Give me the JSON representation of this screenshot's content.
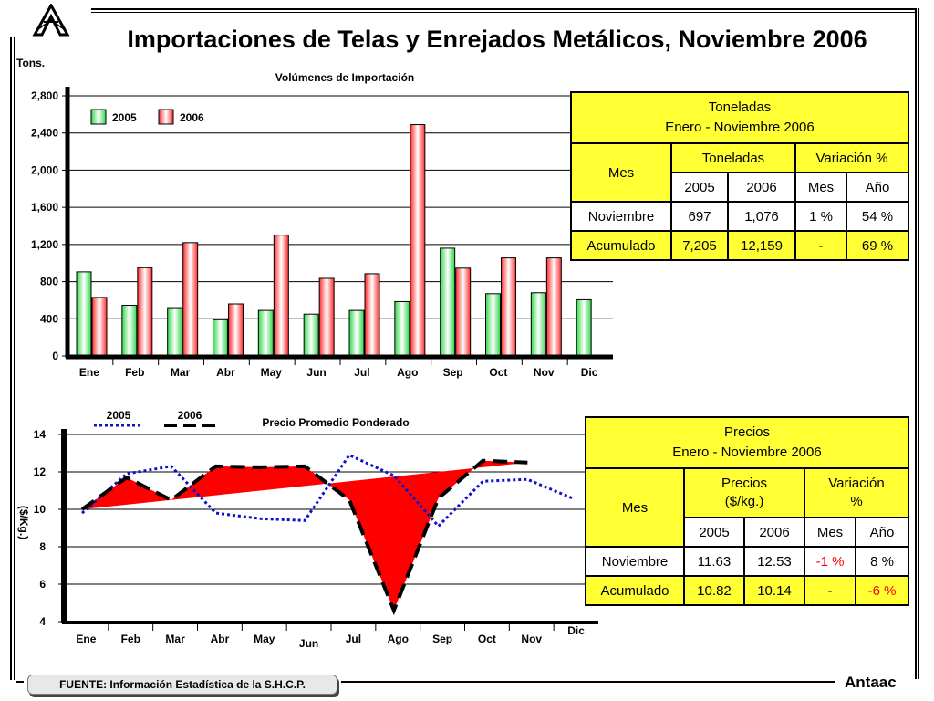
{
  "page": {
    "title": "Importaciones de Telas y Enrejados Metálicos, Noviembre 2006",
    "source": "FUENTE: Información Estadística de la S.H.C.P.",
    "brand": "Antaac"
  },
  "colors": {
    "bar_2005": "#2fd84a",
    "bar_2006": "#ff2a2a",
    "table_fill": "#ffff33",
    "line_2005": "#1010cc",
    "line_2006": "#000000",
    "area_fill": "#ff0000"
  },
  "chart_data": [
    {
      "type": "bar",
      "title": "Volúmenes de Importación",
      "ylabel": "Tons.",
      "categories": [
        "Ene",
        "Feb",
        "Mar",
        "Abr",
        "May",
        "Jun",
        "Jul",
        "Ago",
        "Sep",
        "Oct",
        "Nov",
        "Dic"
      ],
      "series": [
        {
          "name": "2005",
          "values": [
            905,
            545,
            520,
            390,
            490,
            450,
            490,
            585,
            1160,
            670,
            680,
            605
          ]
        },
        {
          "name": "2006",
          "values": [
            630,
            950,
            1220,
            560,
            1300,
            835,
            885,
            2490,
            945,
            1055,
            1055,
            null
          ]
        }
      ],
      "ylim": [
        0,
        2800
      ],
      "yticks": [
        "0",
        "400",
        "800",
        "1,200",
        "1,600",
        "2,000",
        "2,400",
        "2,800"
      ],
      "grid": true,
      "legend": "top-left"
    },
    {
      "type": "line",
      "title": "Precio Promedio Ponderado",
      "ylabel": "($/Kg.)",
      "categories": [
        "Ene",
        "Feb",
        "Mar",
        "Abr",
        "May",
        "Jun",
        "Jul",
        "Ago",
        "Sep",
        "Oct",
        "Nov",
        "Dic"
      ],
      "series": [
        {
          "name": "2005",
          "values": [
            9.8,
            11.9,
            12.3,
            9.8,
            9.5,
            9.4,
            12.9,
            11.8,
            9.1,
            11.5,
            11.6,
            10.6
          ]
        },
        {
          "name": "2006",
          "values": [
            10.0,
            11.7,
            10.5,
            12.3,
            12.25,
            12.3,
            10.5,
            4.6,
            10.6,
            12.6,
            12.5,
            null
          ]
        }
      ],
      "ylim": [
        4,
        14
      ],
      "yticks": [
        "4",
        "6",
        "8",
        "10",
        "12",
        "14"
      ],
      "grid": true,
      "legend": "top-left"
    }
  ],
  "tables": {
    "tonnage": {
      "title_line1": "Toneladas",
      "title_line2": "Enero - Noviembre 2006",
      "col_mes": "Mes",
      "col_group1": "Toneladas",
      "col_group2": "Variación %",
      "sub_2005": "2005",
      "sub_2006": "2006",
      "sub_mes": "Mes",
      "sub_ano": "Año",
      "row1": {
        "label": "Noviembre",
        "v2005": "697",
        "v2006": "1,076",
        "mes": "1 %",
        "ano": "54 %"
      },
      "row2": {
        "label": "Acumulado",
        "v2005": "7,205",
        "v2006": "12,159",
        "mes": "-",
        "ano": "69 %"
      }
    },
    "prices": {
      "title_line1": "Precios",
      "title_line2": "Enero - Noviembre 2006",
      "col_mes": "Mes",
      "col_group1_line1": "Precios",
      "col_group1_line2": "($/kg.)",
      "col_group2_line1": "Variación",
      "col_group2_line2": "%",
      "sub_2005": "2005",
      "sub_2006": "2006",
      "sub_mes": "Mes",
      "sub_ano": "Año",
      "row1": {
        "label": "Noviembre",
        "v2005": "11.63",
        "v2006": "12.53",
        "mes": "-1 %",
        "ano": "8 %"
      },
      "row2": {
        "label": "Acumulado",
        "v2005": "10.82",
        "v2006": "10.14",
        "mes": "-",
        "ano": "-6 %"
      }
    }
  }
}
